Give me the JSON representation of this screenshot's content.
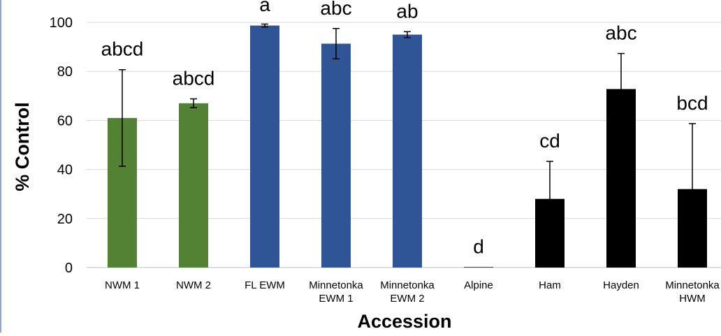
{
  "chart_data": {
    "type": "bar",
    "title": "",
    "xlabel": "Accession",
    "ylabel": "% Control",
    "ylim": [
      0,
      100
    ],
    "yticks": [
      0,
      20,
      40,
      60,
      80,
      100
    ],
    "grid": true,
    "legend": "none",
    "categories": [
      [
        "NWM 1"
      ],
      [
        "NWM 2"
      ],
      [
        "FL EWM"
      ],
      [
        "Minnetonka",
        "EWM 1"
      ],
      [
        "Minnetonka",
        "EWM 2"
      ],
      [
        "Alpine"
      ],
      [
        "Ham"
      ],
      [
        "Hayden"
      ],
      [
        "Minnetonka",
        "HWM"
      ]
    ],
    "values": [
      61,
      67,
      98.7,
      91.3,
      95,
      0.2,
      28,
      72.8,
      32
    ],
    "errors": [
      19.7,
      1.8,
      0.6,
      6.2,
      1.2,
      0,
      15.3,
      14.5,
      26.7
    ],
    "letters": [
      "abcd",
      "abcd",
      "a",
      "abc",
      "ab",
      "d",
      "cd",
      "abc",
      "bcd"
    ],
    "colors": [
      "#548235",
      "#548235",
      "#2f5597",
      "#2f5597",
      "#2f5597",
      "#000000",
      "#000000",
      "#000000",
      "#000000"
    ]
  }
}
